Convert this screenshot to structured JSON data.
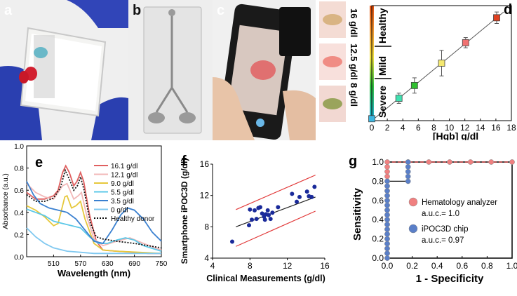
{
  "panel_letters": {
    "a": "a",
    "b": "b",
    "c": "c",
    "d": "d",
    "e": "e",
    "f": "f",
    "g": "g"
  },
  "colors": {
    "glove_blue": "#2a3fb0",
    "blood_red": "#d22030",
    "accent_red": "#e23a3a",
    "scatter_blue": "#1a2a9a",
    "roc_pink": "#f08080",
    "roc_blue": "#5a7fc8"
  },
  "panel_d": {
    "side_labels": {
      "low": "8 g/dl",
      "mid": "12.5 g/dl",
      "high": "16 g/dl"
    },
    "zone_labels": {
      "severe": "Severe",
      "mild": "Mild",
      "healthy": "Healthy"
    }
  },
  "chart_data": [
    {
      "id": "d",
      "type": "scatter",
      "title": "",
      "xlabel": "[Hgb] g/dl",
      "ylabel": "",
      "xlim": [
        0,
        18
      ],
      "ylim": [
        0,
        18
      ],
      "xticks": [
        "0",
        "2",
        "4",
        "6",
        "8",
        "10",
        "12",
        "14",
        "16",
        "18"
      ],
      "grid": false,
      "identity_line": true,
      "points": [
        {
          "x": 0,
          "y": 0.3,
          "err": 0,
          "color": "#3cb6e0"
        },
        {
          "x": 3.5,
          "y": 3.5,
          "err": 0.8,
          "color": "#40e0b0"
        },
        {
          "x": 5.5,
          "y": 5.5,
          "err": 1.2,
          "color": "#30c030"
        },
        {
          "x": 9.0,
          "y": 9.0,
          "err": 2.0,
          "color": "#f4e870"
        },
        {
          "x": 12.1,
          "y": 12.2,
          "err": 0.8,
          "color": "#f07070"
        },
        {
          "x": 16.1,
          "y": 16.1,
          "err": 0.9,
          "color": "#e04020"
        }
      ]
    },
    {
      "id": "e",
      "type": "line",
      "xlabel": "Wavelength (nm)",
      "ylabel": "Absorbance (a.u.)",
      "xlim": [
        450,
        750
      ],
      "ylim": [
        0,
        1.0
      ],
      "xticks": [
        "510",
        "570",
        "630",
        "690",
        "750"
      ],
      "yticks": [
        "0.0",
        "0.2",
        "0.4",
        "0.6",
        "0.8",
        "1.0"
      ],
      "series": [
        {
          "name": "16.1 g/dl",
          "color": "#e06060",
          "dash": false,
          "points": [
            [
              450,
              0.58
            ],
            [
              470,
              0.52
            ],
            [
              490,
              0.52
            ],
            [
              510,
              0.55
            ],
            [
              520,
              0.6
            ],
            [
              530,
              0.76
            ],
            [
              537,
              0.82
            ],
            [
              545,
              0.76
            ],
            [
              555,
              0.64
            ],
            [
              562,
              0.68
            ],
            [
              570,
              0.76
            ],
            [
              577,
              0.68
            ],
            [
              590,
              0.38
            ],
            [
              605,
              0.14
            ],
            [
              620,
              0.06
            ],
            [
              650,
              0.05
            ],
            [
              690,
              0.04
            ],
            [
              720,
              0.03
            ],
            [
              750,
              0.03
            ]
          ]
        },
        {
          "name": "12.1 g/dl",
          "color": "#f2b8b8",
          "dash": false,
          "points": [
            [
              450,
              0.66
            ],
            [
              470,
              0.58
            ],
            [
              490,
              0.54
            ],
            [
              510,
              0.52
            ],
            [
              530,
              0.64
            ],
            [
              540,
              0.66
            ],
            [
              555,
              0.52
            ],
            [
              565,
              0.55
            ],
            [
              572,
              0.58
            ],
            [
              585,
              0.35
            ],
            [
              600,
              0.16
            ],
            [
              620,
              0.1
            ],
            [
              650,
              0.14
            ],
            [
              680,
              0.17
            ],
            [
              710,
              0.12
            ],
            [
              750,
              0.06
            ]
          ]
        },
        {
          "name": "9.0 g/dl",
          "color": "#e6c83c",
          "dash": false,
          "points": [
            [
              450,
              0.46
            ],
            [
              470,
              0.42
            ],
            [
              490,
              0.36
            ],
            [
              510,
              0.28
            ],
            [
              520,
              0.3
            ],
            [
              535,
              0.54
            ],
            [
              540,
              0.55
            ],
            [
              550,
              0.44
            ],
            [
              560,
              0.46
            ],
            [
              570,
              0.5
            ],
            [
              580,
              0.34
            ],
            [
              600,
              0.12
            ],
            [
              620,
              0.06
            ],
            [
              650,
              0.05
            ],
            [
              700,
              0.04
            ],
            [
              750,
              0.03
            ]
          ]
        },
        {
          "name": "5.5 g/dl",
          "color": "#5cc8e8",
          "dash": false,
          "points": [
            [
              450,
              0.43
            ],
            [
              470,
              0.4
            ],
            [
              490,
              0.37
            ],
            [
              510,
              0.32
            ],
            [
              530,
              0.3
            ],
            [
              550,
              0.28
            ],
            [
              570,
              0.26
            ],
            [
              590,
              0.18
            ],
            [
              610,
              0.12
            ],
            [
              630,
              0.12
            ],
            [
              650,
              0.15
            ],
            [
              670,
              0.17
            ],
            [
              690,
              0.15
            ],
            [
              710,
              0.1
            ],
            [
              750,
              0.05
            ]
          ]
        },
        {
          "name": "3.5 g/dl",
          "color": "#3a80d0",
          "dash": false,
          "points": [
            [
              450,
              0.68
            ],
            [
              465,
              0.56
            ],
            [
              480,
              0.48
            ],
            [
              500,
              0.44
            ],
            [
              520,
              0.42
            ],
            [
              540,
              0.4
            ],
            [
              560,
              0.34
            ],
            [
              580,
              0.24
            ],
            [
              600,
              0.14
            ],
            [
              620,
              0.12
            ],
            [
              640,
              0.24
            ],
            [
              660,
              0.38
            ],
            [
              675,
              0.44
            ],
            [
              690,
              0.42
            ],
            [
              710,
              0.34
            ],
            [
              730,
              0.22
            ],
            [
              750,
              0.14
            ]
          ]
        },
        {
          "name": "0 g/dl",
          "color": "#7fc8f0",
          "dash": false,
          "points": [
            [
              450,
              0.26
            ],
            [
              470,
              0.18
            ],
            [
              490,
              0.12
            ],
            [
              510,
              0.08
            ],
            [
              540,
              0.05
            ],
            [
              570,
              0.04
            ],
            [
              600,
              0.03
            ],
            [
              650,
              0.03
            ],
            [
              700,
              0.03
            ],
            [
              750,
              0.03
            ]
          ]
        },
        {
          "name": "Healthy donor",
          "color": "#111111",
          "dash": true,
          "points": [
            [
              450,
              0.56
            ],
            [
              470,
              0.5
            ],
            [
              490,
              0.5
            ],
            [
              510,
              0.53
            ],
            [
              525,
              0.62
            ],
            [
              536,
              0.78
            ],
            [
              545,
              0.7
            ],
            [
              555,
              0.6
            ],
            [
              563,
              0.64
            ],
            [
              570,
              0.72
            ],
            [
              578,
              0.6
            ],
            [
              592,
              0.3
            ],
            [
              605,
              0.18
            ],
            [
              620,
              0.16
            ],
            [
              650,
              0.14
            ],
            [
              690,
              0.12
            ],
            [
              720,
              0.1
            ],
            [
              750,
              0.08
            ]
          ]
        }
      ]
    },
    {
      "id": "f",
      "type": "scatter",
      "xlabel": "Clinical Measurements (g/dl)",
      "ylabel": "Smartphone iPOC3D (g/dl)",
      "xlim": [
        4,
        16
      ],
      "ylim": [
        4,
        16
      ],
      "xticks": [
        "4",
        "8",
        "12",
        "16"
      ],
      "yticks": [
        "4",
        "8",
        "12",
        "16"
      ],
      "fit_line": [
        [
          6.5,
          8.0
        ],
        [
          15.0,
          11.8
        ]
      ],
      "band_upper": [
        [
          6.5,
          10.2
        ],
        [
          15.0,
          14.6
        ]
      ],
      "band_lower": [
        [
          6.5,
          5.5
        ],
        [
          15.0,
          10.0
        ]
      ],
      "points": [
        [
          6.1,
          6.1
        ],
        [
          7.9,
          8.2
        ],
        [
          8.0,
          10.2
        ],
        [
          8.2,
          8.9
        ],
        [
          8.5,
          10.1
        ],
        [
          8.7,
          9.0
        ],
        [
          8.9,
          10.4
        ],
        [
          9.1,
          10.5
        ],
        [
          9.3,
          9.7
        ],
        [
          9.5,
          9.3
        ],
        [
          9.6,
          8.9
        ],
        [
          9.7,
          9.6
        ],
        [
          9.9,
          10.1
        ],
        [
          10.0,
          9.5
        ],
        [
          10.2,
          9.0
        ],
        [
          10.4,
          9.8
        ],
        [
          11.0,
          10.5
        ],
        [
          12.5,
          12.2
        ],
        [
          13.0,
          11.2
        ],
        [
          13.3,
          11.8
        ],
        [
          14.1,
          12.5
        ],
        [
          14.3,
          11.9
        ],
        [
          14.6,
          11.8
        ],
        [
          14.9,
          13.1
        ]
      ]
    },
    {
      "id": "g",
      "type": "line",
      "xlabel": "1 - Specificity",
      "ylabel": "Sensitivity",
      "xlim": [
        0,
        1.0
      ],
      "ylim": [
        0,
        1.0
      ],
      "xticks": [
        "0.0",
        "0.2",
        "0.4",
        "0.6",
        "0.8",
        "1.0"
      ],
      "yticks": [
        "0.0",
        "0.2",
        "0.4",
        "0.6",
        "0.8",
        "1.0"
      ],
      "series": [
        {
          "name": "Hematology analyzer",
          "auc": "a.u.c.= 1.0",
          "color": "#f08080",
          "points": [
            [
              0,
              0.0
            ],
            [
              0,
              0.05
            ],
            [
              0,
              0.1
            ],
            [
              0,
              0.15
            ],
            [
              0,
              0.2
            ],
            [
              0,
              0.25
            ],
            [
              0,
              0.3
            ],
            [
              0,
              0.35
            ],
            [
              0,
              0.4
            ],
            [
              0,
              0.45
            ],
            [
              0,
              0.5
            ],
            [
              0,
              0.55
            ],
            [
              0,
              0.6
            ],
            [
              0,
              0.65
            ],
            [
              0,
              0.7
            ],
            [
              0,
              0.75
            ],
            [
              0,
              0.8
            ],
            [
              0,
              0.85
            ],
            [
              0,
              0.9
            ],
            [
              0,
              0.95
            ],
            [
              0,
              1.0
            ],
            [
              0.167,
              1.0
            ],
            [
              0.333,
              1.0
            ],
            [
              0.5,
              1.0
            ],
            [
              0.667,
              1.0
            ],
            [
              0.833,
              1.0
            ],
            [
              1.0,
              1.0
            ]
          ]
        },
        {
          "name": "iPOC3D chip",
          "auc": "a.u.c.= 0.97",
          "color": "#5a7fc8",
          "points": [
            [
              0,
              0.0
            ],
            [
              0,
              0.05
            ],
            [
              0,
              0.1
            ],
            [
              0,
              0.15
            ],
            [
              0,
              0.2
            ],
            [
              0,
              0.25
            ],
            [
              0,
              0.3
            ],
            [
              0,
              0.35
            ],
            [
              0,
              0.4
            ],
            [
              0,
              0.45
            ],
            [
              0,
              0.5
            ],
            [
              0,
              0.55
            ],
            [
              0,
              0.6
            ],
            [
              0,
              0.65
            ],
            [
              0,
              0.7
            ],
            [
              0,
              0.75
            ],
            [
              0,
              0.8
            ],
            [
              0.167,
              0.8
            ],
            [
              0.167,
              0.85
            ],
            [
              0.167,
              0.9
            ],
            [
              0.167,
              0.95
            ],
            [
              0.167,
              1.0
            ]
          ]
        }
      ]
    }
  ]
}
